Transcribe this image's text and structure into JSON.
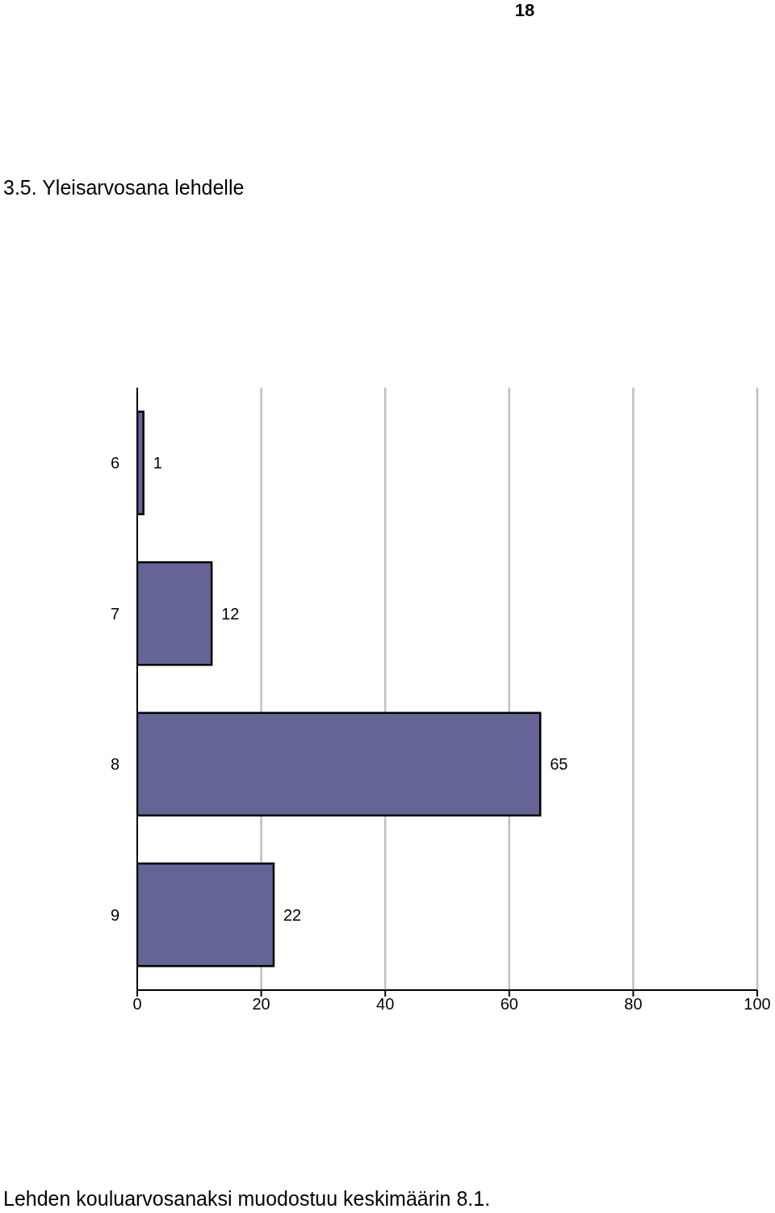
{
  "chart_data": {
    "type": "bar",
    "orientation": "horizontal",
    "title": "3.5. Yleisarvosana lehdelle",
    "categories": [
      "6",
      "7",
      "8",
      "9"
    ],
    "values": [
      1,
      12,
      65,
      22
    ],
    "color": "#646496",
    "xlim": [
      0,
      100
    ],
    "xticks": [
      0,
      20,
      40,
      60,
      80,
      100
    ],
    "grid": "x",
    "data_labels": true,
    "annotations": [
      "18",
      "Lehden kouluarvosanaksi muodostuu keskimäärin 8.1."
    ]
  }
}
